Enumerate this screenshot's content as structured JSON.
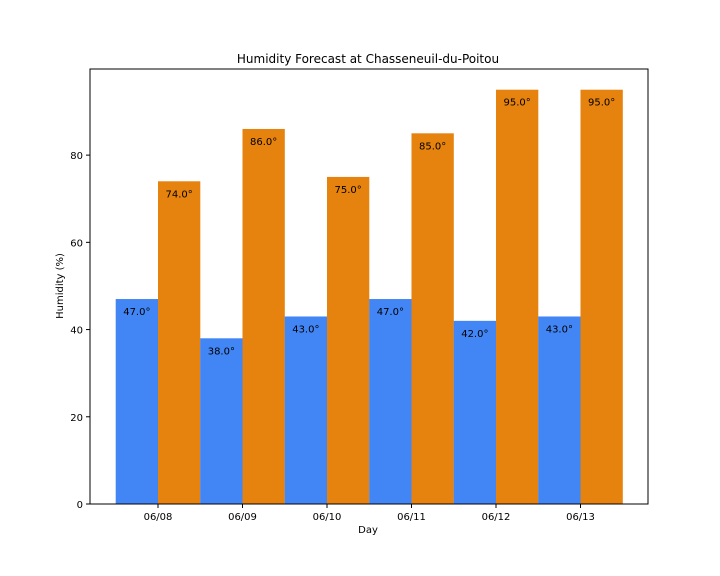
{
  "chart_data": {
    "type": "bar",
    "title": "Humidity Forecast at Chasseneuil-du-Poitou",
    "xlabel": "Day",
    "ylabel": "Humidity (%)",
    "categories": [
      "06/08",
      "06/09",
      "06/10",
      "06/11",
      "06/12",
      "06/13"
    ],
    "series": [
      {
        "color": "#4285f4",
        "values": [
          47.0,
          38.0,
          43.0,
          47.0,
          42.0,
          43.0
        ],
        "labels": [
          "47.0°",
          "38.0°",
          "43.0°",
          "47.0°",
          "42.0°",
          "43.0°"
        ]
      },
      {
        "color": "#e6820e",
        "values": [
          74.0,
          86.0,
          75.0,
          85.0,
          95.0,
          95.0
        ],
        "labels": [
          "74.0°",
          "86.0°",
          "75.0°",
          "85.0°",
          "95.0°",
          "95.0°"
        ]
      }
    ],
    "ylim": [
      0,
      99.75
    ],
    "yticks": [
      0,
      20,
      40,
      60,
      80
    ],
    "grid": false,
    "legend": "none"
  }
}
